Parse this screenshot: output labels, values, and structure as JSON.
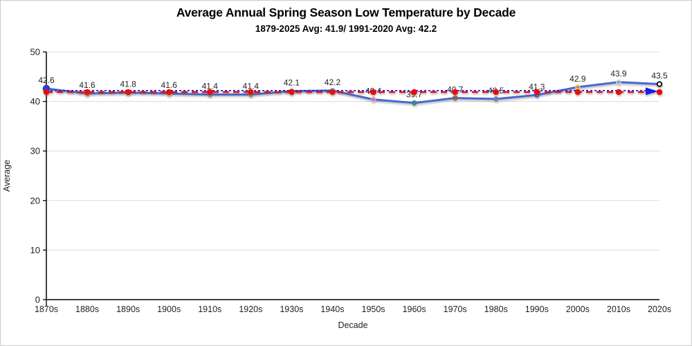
{
  "window": {
    "background": "#ffffff",
    "border_color": "#c9c9c9"
  },
  "chart": {
    "title": "Average Annual Spring Season Low Temperature by Decade",
    "subtitle": "1879-2025 Avg: 41.9/ 1991-2020 Avg: 42.2",
    "x_axis_title": "Decade",
    "y_axis_title": "Average"
  },
  "chart_data": {
    "type": "line",
    "title": "Average Annual Spring Season Low Temperature by Decade",
    "subtitle": "1879-2025 Avg: 41.9/ 1991-2020 Avg: 42.2",
    "xlabel": "Decade",
    "ylabel": "Average",
    "ylim": [
      0,
      50
    ],
    "y_ticks": [
      0,
      10,
      20,
      30,
      40,
      50
    ],
    "grid": true,
    "legend": "none",
    "categories": [
      "1870s",
      "1880s",
      "1890s",
      "1900s",
      "1910s",
      "1920s",
      "1930s",
      "1940s",
      "1950s",
      "1960s",
      "1970s",
      "1980s",
      "1990s",
      "2000s",
      "2010s",
      "2020s"
    ],
    "series": [
      {
        "name": "Average Annual Spring Season Low Temperature",
        "style": "solid",
        "color": "#4569cf",
        "values": [
          42.6,
          41.6,
          41.8,
          41.6,
          41.4,
          41.4,
          42.1,
          42.2,
          40.4,
          39.7,
          40.7,
          40.5,
          41.3,
          42.9,
          43.9,
          43.5
        ],
        "data_labels": true,
        "point_colors": [
          "#2441d9",
          "#ed7d31",
          "#a5a5a5",
          "#ffc000",
          "#5b9bd5",
          "#70ad47",
          "#9aa0a6",
          "#58b8cf",
          "#e89cb0",
          "#2f8f72",
          "#9c5f2e",
          "#8f74c9",
          "#3a57d1",
          "#e6d44f",
          "#cfcfcf",
          "#000000"
        ]
      },
      {
        "name": "1879-2025 Avg",
        "style": "dashed",
        "color": "#e81111",
        "constant": 41.9,
        "markers": "red-dots"
      },
      {
        "name": "1991-2020 Avg",
        "style": "dotted",
        "color": "#1a1ae6",
        "constant": 42.2,
        "end_arrow": true
      }
    ],
    "colors": {
      "grid": "#d9d9d9",
      "axis": "#000000",
      "label_text": "#1f1f1f"
    }
  }
}
